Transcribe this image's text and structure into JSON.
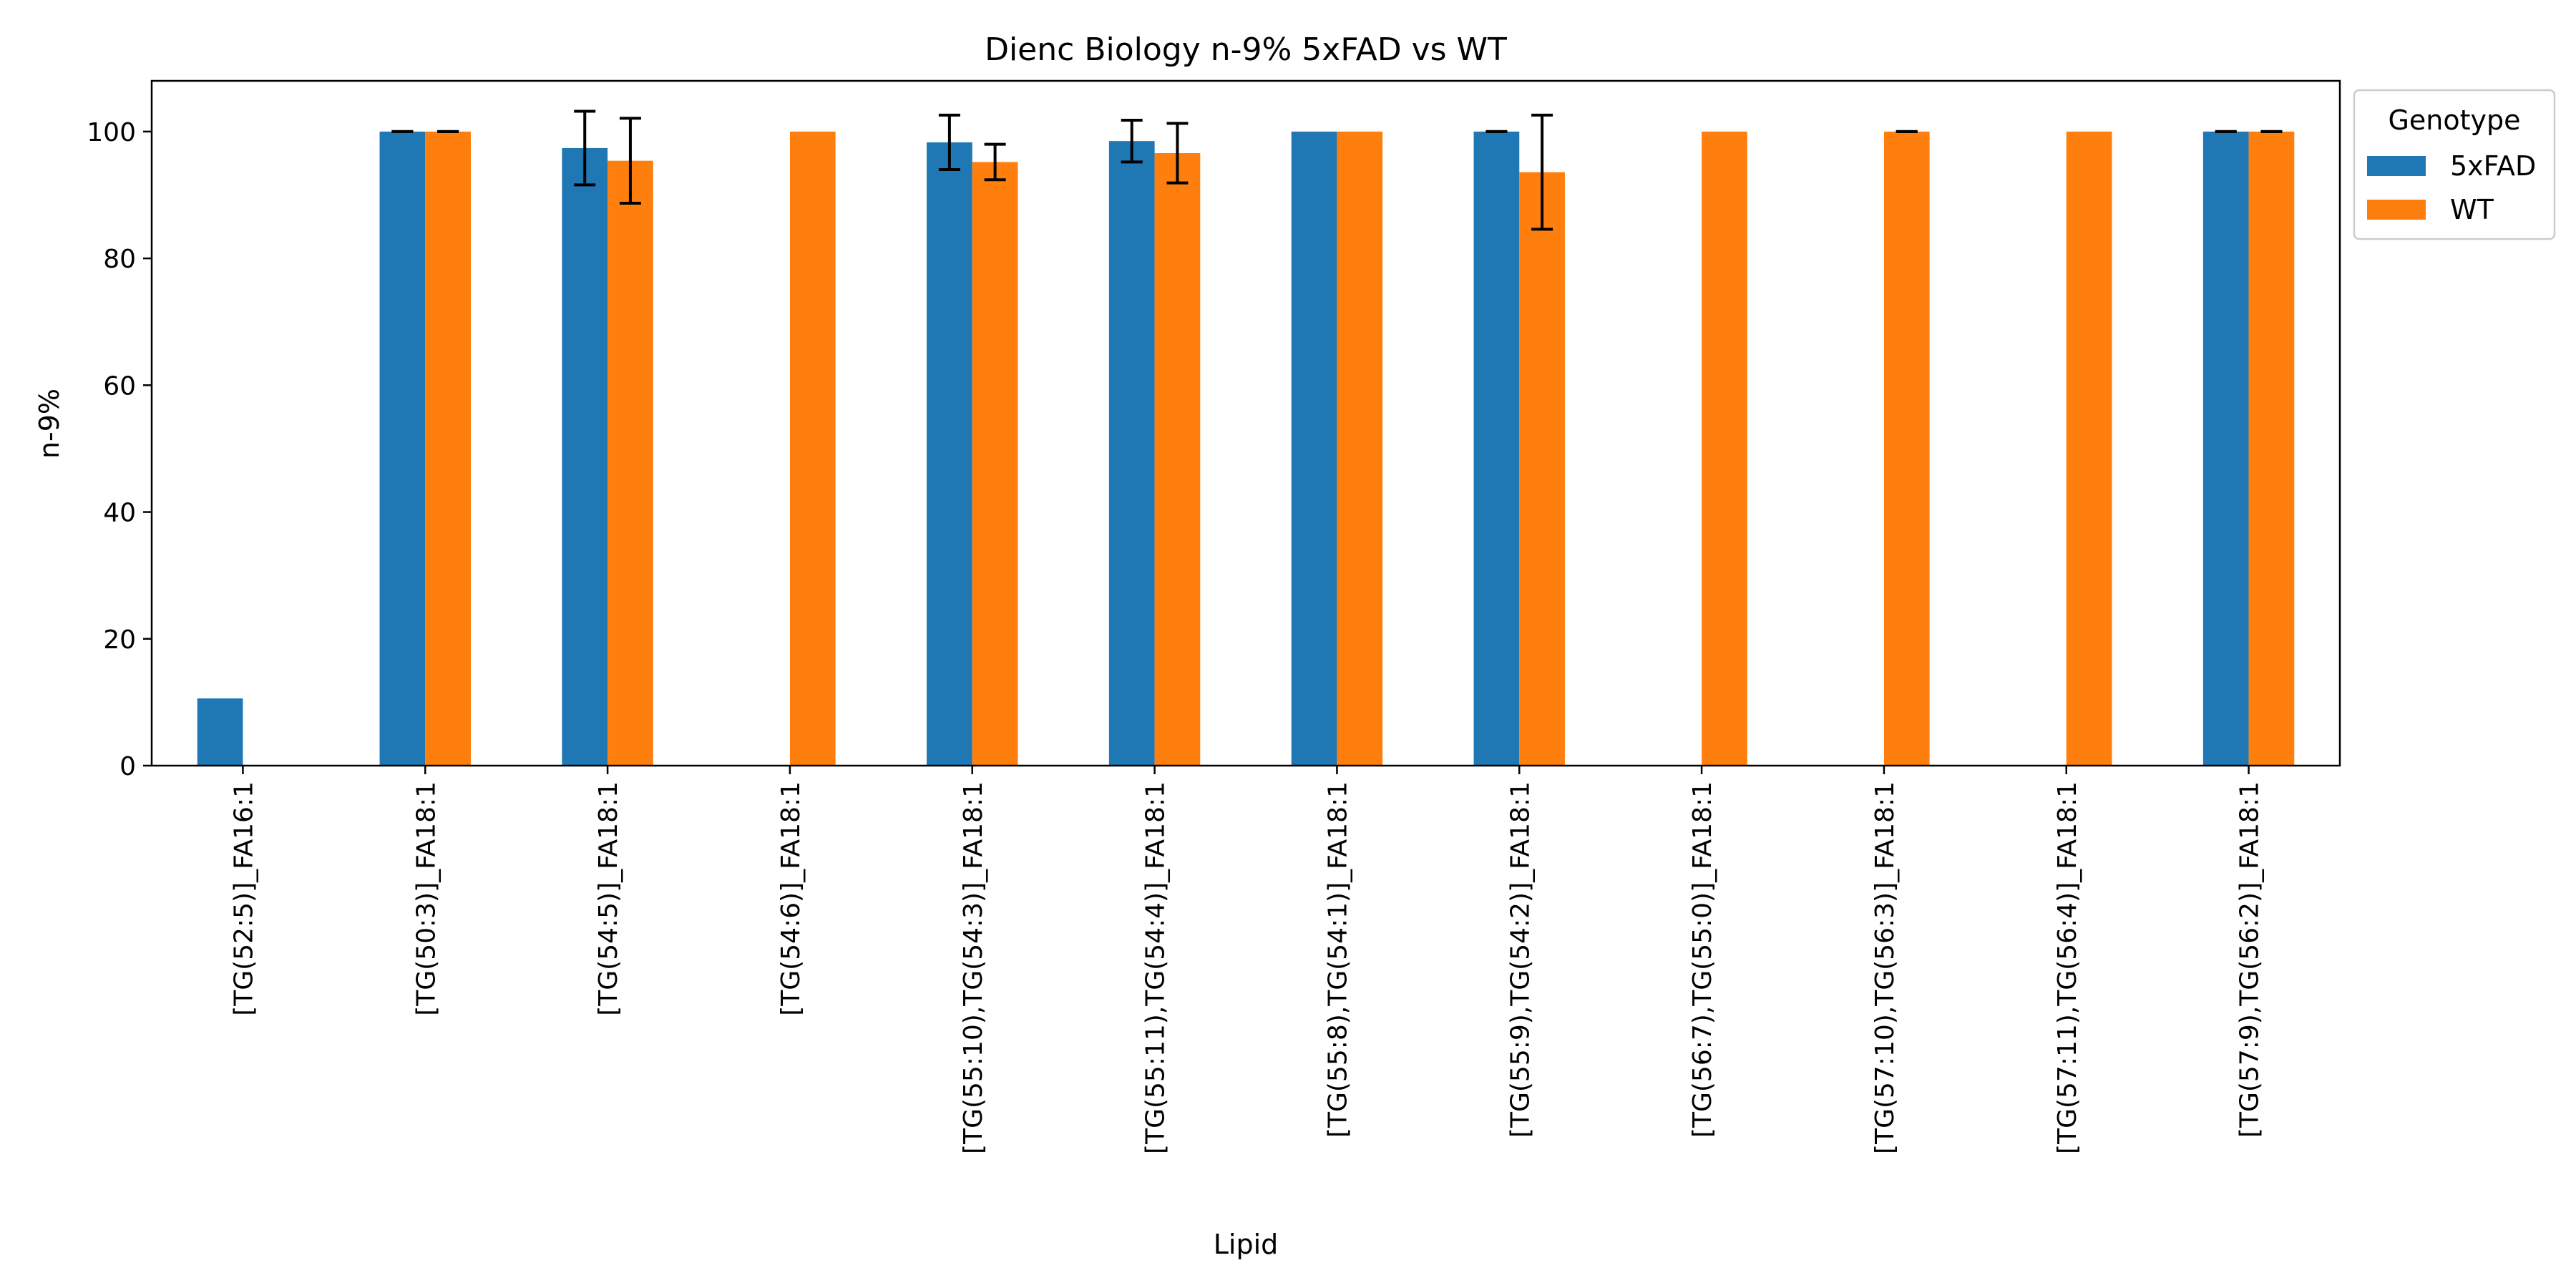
{
  "chart_data": {
    "type": "bar",
    "title": "Dienc Biology n-9% 5xFAD vs WT",
    "xlabel": "Lipid",
    "ylabel": "n-9%",
    "ylim": [
      0,
      108
    ],
    "yticks": [
      0,
      20,
      40,
      60,
      80,
      100
    ],
    "grid": false,
    "legend": {
      "title": "Genotype",
      "placement": "outside-top-right"
    },
    "categories": [
      "[TG(52:5)]_FA16:1",
      "[TG(50:3)]_FA18:1",
      "[TG(54:5)]_FA18:1",
      "[TG(54:6)]_FA18:1",
      "[TG(55:10),TG(54:3)]_FA18:1",
      "[TG(55:11),TG(54:4)]_FA18:1",
      "[TG(55:8),TG(54:1)]_FA18:1",
      "[TG(55:9),TG(54:2)]_FA18:1",
      "[TG(56:7),TG(55:0)]_FA18:1",
      "[TG(57:10),TG(56:3)]_FA18:1",
      "[TG(57:11),TG(56:4)]_FA18:1",
      "[TG(57:9),TG(56:2)]_FA18:1"
    ],
    "series": [
      {
        "name": "5xFAD",
        "color": "#1f77b4",
        "values": [
          10.6,
          100,
          97.4,
          null,
          98.3,
          98.5,
          100,
          100,
          null,
          null,
          null,
          100
        ],
        "errors": [
          null,
          0,
          5.8,
          null,
          4.3,
          3.3,
          null,
          0,
          null,
          null,
          null,
          0
        ]
      },
      {
        "name": "WT",
        "color": "#ff7f0e",
        "values": [
          null,
          100,
          95.4,
          100,
          95.2,
          96.6,
          100,
          93.6,
          100,
          100,
          100,
          100
        ],
        "errors": [
          null,
          0,
          6.7,
          null,
          2.8,
          4.7,
          null,
          9.0,
          null,
          0,
          null,
          0
        ]
      }
    ]
  }
}
